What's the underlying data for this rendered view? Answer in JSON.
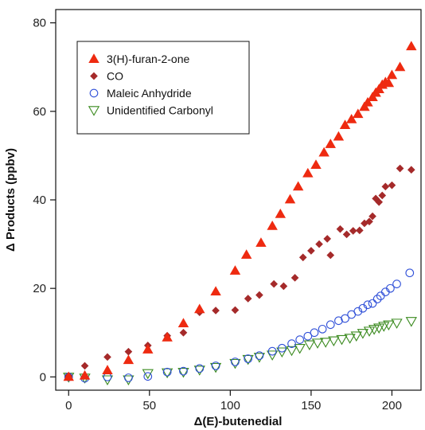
{
  "chart_data": {
    "type": "scatter",
    "xlabel": "Δ(E)-butenedial",
    "ylabel": "Δ Products  (ppbv)",
    "xlim": [
      -8,
      218
    ],
    "ylim": [
      -3,
      83
    ],
    "xticks": [
      0,
      50,
      100,
      150,
      200
    ],
    "yticks": [
      0,
      20,
      40,
      60,
      80
    ],
    "grid": false,
    "legend_position": "top-left",
    "series": [
      {
        "name": "3(H)-furan-2-one",
        "marker": "triangle-up",
        "filled": true,
        "color": "#ee2a10",
        "points": [
          [
            0,
            0
          ],
          [
            10,
            0.3
          ],
          [
            24,
            1.5
          ],
          [
            37,
            3.8
          ],
          [
            49,
            6.2
          ],
          [
            61,
            8.9
          ],
          [
            71,
            12.1
          ],
          [
            81,
            15.3
          ],
          [
            91,
            19.3
          ],
          [
            103,
            24.0
          ],
          [
            110,
            27.6
          ],
          [
            119,
            30.3
          ],
          [
            126,
            34.1
          ],
          [
            131,
            36.8
          ],
          [
            137,
            40.1
          ],
          [
            142,
            43.0
          ],
          [
            148,
            46.0
          ],
          [
            153,
            47.9
          ],
          [
            158,
            50.7
          ],
          [
            162,
            52.6
          ],
          [
            167,
            54.3
          ],
          [
            171,
            56.9
          ],
          [
            175,
            58.2
          ],
          [
            179,
            59.4
          ],
          [
            183,
            61.0
          ],
          [
            185,
            62.0
          ],
          [
            188,
            63.2
          ],
          [
            190,
            64.2
          ],
          [
            192,
            65.0
          ],
          [
            194,
            66.0
          ],
          [
            196,
            66.6
          ],
          [
            198,
            66.4
          ],
          [
            200,
            68.2
          ],
          [
            205,
            70.0
          ],
          [
            212,
            74.7
          ]
        ]
      },
      {
        "name": "CO",
        "marker": "diamond",
        "filled": true,
        "color": "#a52a2a",
        "points": [
          [
            0,
            0.2
          ],
          [
            10,
            2.5
          ],
          [
            24,
            4.5
          ],
          [
            37,
            5.7
          ],
          [
            49,
            7.1
          ],
          [
            61,
            9.3
          ],
          [
            71,
            10.0
          ],
          [
            81,
            14.6
          ],
          [
            91,
            15.0
          ],
          [
            103,
            15.1
          ],
          [
            111,
            17.7
          ],
          [
            118,
            18.5
          ],
          [
            127,
            21.0
          ],
          [
            133,
            20.5
          ],
          [
            140,
            22.4
          ],
          [
            145,
            27.0
          ],
          [
            150,
            28.5
          ],
          [
            155,
            30.0
          ],
          [
            160,
            31.2
          ],
          [
            162,
            27.5
          ],
          [
            168,
            33.4
          ],
          [
            172,
            32.2
          ],
          [
            176,
            33.0
          ],
          [
            180,
            33.1
          ],
          [
            183,
            34.7
          ],
          [
            186,
            35.1
          ],
          [
            188,
            36.3
          ],
          [
            190,
            40.3
          ],
          [
            192,
            39.5
          ],
          [
            194,
            41.0
          ],
          [
            196,
            43.0
          ],
          [
            200,
            43.3
          ],
          [
            205,
            47.1
          ],
          [
            212,
            46.8
          ]
        ]
      },
      {
        "name": "Maleic Anhydride",
        "marker": "circle",
        "filled": false,
        "color": "#3050d8",
        "points": [
          [
            0,
            0
          ],
          [
            10,
            -0.3
          ],
          [
            24,
            0
          ],
          [
            37,
            -0.2
          ],
          [
            49,
            0.1
          ],
          [
            61,
            1.1
          ],
          [
            71,
            1.3
          ],
          [
            81,
            1.9
          ],
          [
            91,
            2.5
          ],
          [
            103,
            3.4
          ],
          [
            111,
            4.1
          ],
          [
            118,
            4.8
          ],
          [
            126,
            5.8
          ],
          [
            132,
            6.5
          ],
          [
            138,
            7.5
          ],
          [
            143,
            8.4
          ],
          [
            148,
            9.2
          ],
          [
            152,
            10.0
          ],
          [
            157,
            10.8
          ],
          [
            162,
            11.8
          ],
          [
            167,
            12.7
          ],
          [
            171,
            13.2
          ],
          [
            175,
            14.1
          ],
          [
            179,
            14.8
          ],
          [
            182,
            15.5
          ],
          [
            185,
            16.3
          ],
          [
            188,
            16.6
          ],
          [
            191,
            17.6
          ],
          [
            193,
            18.3
          ],
          [
            196,
            19.2
          ],
          [
            199,
            20.0
          ],
          [
            203,
            21.0
          ],
          [
            211,
            23.5
          ]
        ]
      },
      {
        "name": "Unidentified Carbonyl",
        "marker": "triangle-down",
        "filled": false,
        "color": "#3a8a1e",
        "points": [
          [
            0,
            0
          ],
          [
            10,
            -0.2
          ],
          [
            24,
            -0.6
          ],
          [
            37,
            -0.6
          ],
          [
            49,
            0.8
          ],
          [
            61,
            1.0
          ],
          [
            71,
            1.1
          ],
          [
            81,
            1.6
          ],
          [
            91,
            2.2
          ],
          [
            103,
            3.1
          ],
          [
            111,
            4.0
          ],
          [
            118,
            4.5
          ],
          [
            126,
            5.0
          ],
          [
            132,
            5.7
          ],
          [
            138,
            6.0
          ],
          [
            143,
            6.5
          ],
          [
            149,
            7.3
          ],
          [
            154,
            7.7
          ],
          [
            159,
            7.9
          ],
          [
            164,
            8.2
          ],
          [
            169,
            8.5
          ],
          [
            174,
            8.8
          ],
          [
            178,
            9.3
          ],
          [
            182,
            9.9
          ],
          [
            186,
            10.4
          ],
          [
            189,
            10.8
          ],
          [
            192,
            11.1
          ],
          [
            195,
            11.5
          ],
          [
            198,
            11.8
          ],
          [
            203,
            12.2
          ],
          [
            212,
            12.6
          ]
        ]
      }
    ]
  }
}
